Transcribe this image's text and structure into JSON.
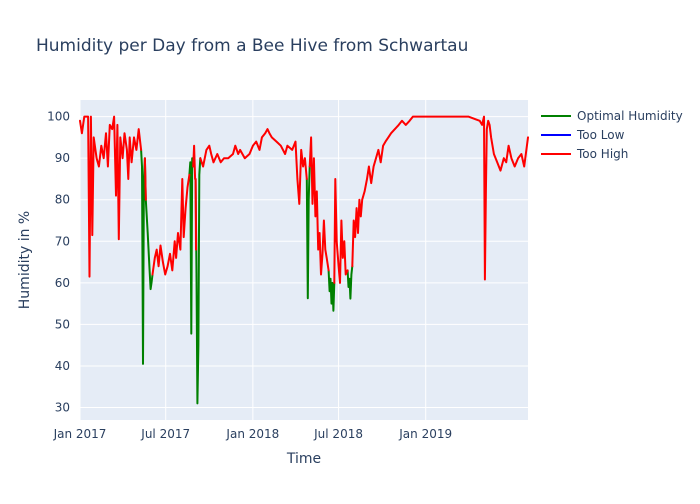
{
  "chart_data": {
    "type": "line",
    "title": "Humidity per Day from a Bee Hive from Schwartau",
    "xlabel": "Time",
    "ylabel": "Humidity in %",
    "xlim": [
      "2017-01-01",
      "2019-08-05"
    ],
    "ylim": [
      27,
      104
    ],
    "x_ticks": [
      "2017-01-01",
      "2017-07-01",
      "2018-01-01",
      "2018-07-01",
      "2019-01-01"
    ],
    "x_tick_labels": [
      "Jan 2017",
      "Jul 2017",
      "Jan 2018",
      "Jul 2018",
      "Jan 2019"
    ],
    "y_ticks": [
      30,
      40,
      50,
      60,
      70,
      80,
      90,
      100
    ],
    "grid": true,
    "legend_position": "top-right",
    "background": "#e5ecf6",
    "series": [
      {
        "name": "Optimal Humidity",
        "color": "#008000",
        "points": [
          [
            "2017-05-10",
            92
          ],
          [
            "2017-05-12",
            88
          ],
          [
            "2017-05-14",
            40.5
          ],
          [
            "2017-05-16",
            85
          ],
          [
            "2017-05-18",
            90
          ],
          [
            "2017-05-20",
            80
          ],
          [
            "2017-05-24",
            72
          ],
          [
            "2017-05-28",
            63
          ],
          [
            "2017-05-30",
            58.5
          ],
          [
            "2017-06-01",
            60
          ],
          [
            "2017-06-03",
            62
          ],
          null,
          [
            "2017-08-20",
            86
          ],
          [
            "2017-08-22",
            89
          ],
          [
            "2017-08-24",
            47.8
          ],
          [
            "2017-08-26",
            90
          ],
          [
            "2017-08-28",
            88
          ],
          null,
          [
            "2017-09-02",
            85
          ],
          [
            "2017-09-04",
            62
          ],
          [
            "2017-09-06",
            31
          ],
          [
            "2017-09-08",
            45
          ],
          [
            "2017-09-10",
            86
          ],
          [
            "2017-09-12",
            90
          ],
          null,
          [
            "2018-04-25",
            85
          ],
          [
            "2018-04-27",
            56.3
          ],
          [
            "2018-04-29",
            80
          ],
          [
            "2018-05-01",
            88
          ],
          null,
          [
            "2018-06-10",
            63
          ],
          [
            "2018-06-12",
            58
          ],
          [
            "2018-06-14",
            61
          ],
          [
            "2018-06-16",
            55
          ],
          [
            "2018-06-18",
            60
          ],
          [
            "2018-06-20",
            53.3
          ],
          [
            "2018-06-22",
            60
          ],
          null,
          [
            "2018-07-20",
            63
          ],
          [
            "2018-07-22",
            59
          ],
          [
            "2018-07-24",
            61
          ],
          [
            "2018-07-26",
            56.2
          ],
          [
            "2018-07-28",
            62
          ],
          [
            "2018-07-30",
            64
          ]
        ]
      },
      {
        "name": "Too Low",
        "color": "#0000ff",
        "points": []
      },
      {
        "name": "Too High",
        "color": "#ff0000",
        "points": [
          [
            "2017-01-01",
            99
          ],
          [
            "2017-01-05",
            96
          ],
          [
            "2017-01-10",
            100
          ],
          [
            "2017-01-18",
            100
          ],
          [
            "2017-01-21",
            61.5
          ],
          [
            "2017-01-24",
            100
          ],
          [
            "2017-01-27",
            71.5
          ],
          [
            "2017-01-30",
            95
          ],
          [
            "2017-02-05",
            90
          ],
          [
            "2017-02-10",
            88
          ],
          [
            "2017-02-15",
            93
          ],
          [
            "2017-02-20",
            90
          ],
          [
            "2017-02-25",
            96
          ],
          [
            "2017-03-01",
            88
          ],
          [
            "2017-03-05",
            98
          ],
          [
            "2017-03-10",
            97
          ],
          [
            "2017-03-14",
            100
          ],
          [
            "2017-03-18",
            81
          ],
          [
            "2017-03-21",
            98
          ],
          [
            "2017-03-24",
            70.5
          ],
          [
            "2017-03-27",
            95
          ],
          [
            "2017-04-01",
            90
          ],
          [
            "2017-04-05",
            96
          ],
          [
            "2017-04-10",
            92
          ],
          [
            "2017-04-13",
            85
          ],
          [
            "2017-04-16",
            95
          ],
          [
            "2017-04-20",
            89
          ],
          [
            "2017-04-25",
            95
          ],
          [
            "2017-04-30",
            92
          ],
          [
            "2017-05-05",
            97
          ],
          [
            "2017-05-10",
            92
          ],
          null,
          [
            "2017-05-18",
            90
          ],
          [
            "2017-05-20",
            80
          ],
          null,
          [
            "2017-06-03",
            62
          ],
          [
            "2017-06-08",
            66
          ],
          [
            "2017-06-12",
            68
          ],
          [
            "2017-06-16",
            64
          ],
          [
            "2017-06-20",
            69
          ],
          [
            "2017-06-25",
            65
          ],
          [
            "2017-06-30",
            62
          ],
          [
            "2017-07-05",
            64
          ],
          [
            "2017-07-10",
            67
          ],
          [
            "2017-07-15",
            63
          ],
          [
            "2017-07-20",
            70
          ],
          [
            "2017-07-23",
            66
          ],
          [
            "2017-07-27",
            72
          ],
          [
            "2017-08-01",
            68
          ],
          [
            "2017-08-05",
            85
          ],
          [
            "2017-08-08",
            71
          ],
          [
            "2017-08-12",
            78
          ],
          [
            "2017-08-16",
            83
          ],
          [
            "2017-08-20",
            86
          ],
          null,
          [
            "2017-08-28",
            88
          ],
          [
            "2017-08-30",
            93
          ],
          [
            "2017-09-01",
            85
          ],
          [
            "2017-09-02",
            85
          ],
          [
            "2017-09-03",
            68
          ],
          null,
          [
            "2017-09-12",
            90
          ],
          [
            "2017-09-18",
            88
          ],
          [
            "2017-09-25",
            92
          ],
          [
            "2017-10-01",
            93
          ],
          [
            "2017-10-05",
            91
          ],
          [
            "2017-10-10",
            89
          ],
          [
            "2017-10-18",
            91
          ],
          [
            "2017-10-25",
            89
          ],
          [
            "2017-11-01",
            90
          ],
          [
            "2017-11-10",
            90
          ],
          [
            "2017-11-20",
            91
          ],
          [
            "2017-11-25",
            93
          ],
          [
            "2017-12-01",
            91
          ],
          [
            "2017-12-05",
            92
          ],
          [
            "2017-12-15",
            90
          ],
          [
            "2017-12-25",
            91
          ],
          [
            "2018-01-01",
            93
          ],
          [
            "2018-01-08",
            94
          ],
          [
            "2018-01-15",
            92
          ],
          [
            "2018-01-20",
            95
          ],
          [
            "2018-01-27",
            96
          ],
          [
            "2018-02-01",
            97
          ],
          [
            "2018-02-05",
            96
          ],
          [
            "2018-02-10",
            95
          ],
          [
            "2018-02-20",
            94
          ],
          [
            "2018-03-01",
            93
          ],
          [
            "2018-03-10",
            91
          ],
          [
            "2018-03-15",
            93
          ],
          [
            "2018-03-25",
            92
          ],
          [
            "2018-04-01",
            94
          ],
          [
            "2018-04-05",
            85
          ],
          [
            "2018-04-09",
            79
          ],
          [
            "2018-04-13",
            92
          ],
          [
            "2018-04-17",
            88
          ],
          [
            "2018-04-21",
            90
          ],
          [
            "2018-04-25",
            85
          ],
          null,
          [
            "2018-05-01",
            88
          ],
          [
            "2018-05-04",
            95
          ],
          [
            "2018-05-07",
            79
          ],
          [
            "2018-05-10",
            90
          ],
          [
            "2018-05-13",
            76
          ],
          [
            "2018-05-16",
            82
          ],
          [
            "2018-05-19",
            68
          ],
          [
            "2018-05-22",
            72
          ],
          [
            "2018-05-25",
            62
          ],
          [
            "2018-05-28",
            67
          ],
          [
            "2018-05-31",
            75
          ],
          [
            "2018-06-03",
            68
          ],
          [
            "2018-06-06",
            66
          ],
          [
            "2018-06-10",
            63
          ],
          null,
          [
            "2018-06-22",
            60
          ],
          [
            "2018-06-24",
            85
          ],
          [
            "2018-06-27",
            70
          ],
          [
            "2018-07-01",
            64
          ],
          [
            "2018-07-04",
            60
          ],
          [
            "2018-07-07",
            75
          ],
          [
            "2018-07-10",
            66
          ],
          [
            "2018-07-13",
            70
          ],
          [
            "2018-07-16",
            62
          ],
          [
            "2018-07-20",
            63
          ],
          null,
          [
            "2018-07-30",
            64
          ],
          [
            "2018-08-02",
            75
          ],
          [
            "2018-08-05",
            71
          ],
          [
            "2018-08-08",
            78
          ],
          [
            "2018-08-11",
            72
          ],
          [
            "2018-08-14",
            80
          ],
          [
            "2018-08-17",
            76
          ],
          [
            "2018-08-20",
            80
          ],
          [
            "2018-08-25",
            82
          ],
          [
            "2018-08-30",
            85
          ],
          [
            "2018-09-03",
            88
          ],
          [
            "2018-09-08",
            84
          ],
          [
            "2018-09-13",
            88
          ],
          [
            "2018-09-18",
            90
          ],
          [
            "2018-09-23",
            92
          ],
          [
            "2018-09-28",
            89
          ],
          [
            "2018-10-03",
            93
          ],
          [
            "2018-10-08",
            94
          ],
          [
            "2018-10-14",
            95
          ],
          [
            "2018-10-20",
            96
          ],
          [
            "2018-10-28",
            97
          ],
          [
            "2018-11-05",
            98
          ],
          [
            "2018-11-12",
            99
          ],
          [
            "2018-11-20",
            98
          ],
          [
            "2018-11-28",
            99
          ],
          [
            "2018-12-05",
            100
          ],
          [
            "2018-12-15",
            100
          ],
          [
            "2019-01-01",
            100
          ],
          [
            "2019-02-01",
            100
          ],
          [
            "2019-03-01",
            100
          ],
          [
            "2019-04-01",
            100
          ],
          [
            "2019-04-25",
            99
          ],
          [
            "2019-04-30",
            98
          ],
          [
            "2019-05-04",
            100
          ],
          [
            "2019-05-06",
            60.8
          ],
          [
            "2019-05-08",
            82
          ],
          [
            "2019-05-10",
            97
          ],
          [
            "2019-05-13",
            99
          ],
          [
            "2019-05-16",
            98
          ],
          [
            "2019-05-19",
            95
          ],
          [
            "2019-05-25",
            91
          ],
          [
            "2019-06-01",
            89
          ],
          [
            "2019-06-08",
            87
          ],
          [
            "2019-06-15",
            90
          ],
          [
            "2019-06-20",
            89
          ],
          [
            "2019-06-25",
            93
          ],
          [
            "2019-07-01",
            90
          ],
          [
            "2019-07-08",
            88
          ],
          [
            "2019-07-15",
            90
          ],
          [
            "2019-07-22",
            91
          ],
          [
            "2019-07-28",
            88
          ],
          [
            "2019-08-05",
            95
          ]
        ]
      }
    ]
  }
}
